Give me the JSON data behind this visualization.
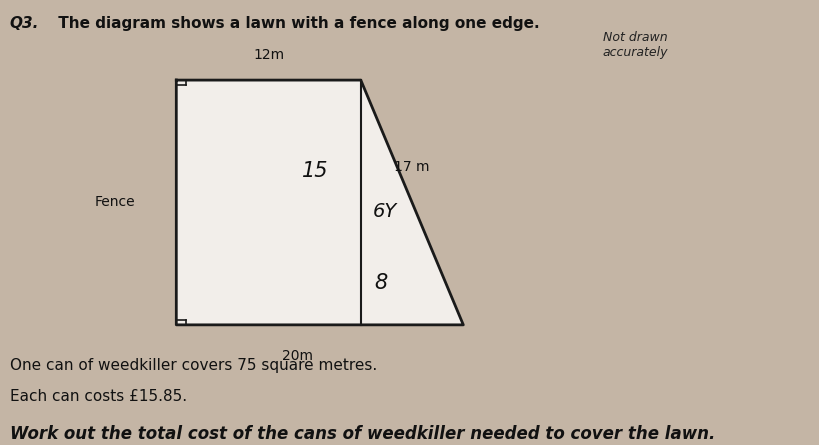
{
  "bg_color": "#c4b5a5",
  "shape_color": "#f2eeea",
  "shape_edge_color": "#1a1a1a",
  "title_q": "Q3.",
  "title_rest": " The diagram shows a lawn with a fence along one edge.",
  "not_drawn_text": "Not drawn\naccurately",
  "label_12m": "12m",
  "label_20m": "20m",
  "label_15": "15",
  "label_17m": "17 m",
  "label_6Y": "6Y",
  "label_8": "8",
  "label_fence": "Fence",
  "text1": "One can of weedkiller covers 75 square metres.",
  "text2": "Each can costs £15.85.",
  "text3": "Work out the total cost of the cans of weedkiller needed to cover the lawn.",
  "right_angle_color": "#1a1a1a",
  "shape_lw": 2.0,
  "internal_lw": 1.5,
  "ra_size": 0.012
}
